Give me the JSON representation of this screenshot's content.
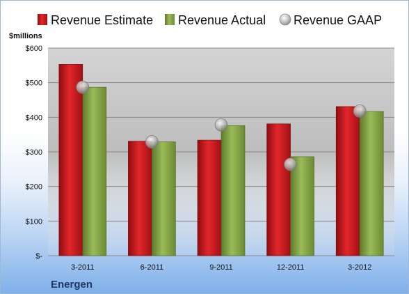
{
  "chart_data": {
    "type": "bar",
    "unit_label": "$millions",
    "company": "Energen",
    "categories": [
      "3-2011",
      "6-2011",
      "9-2011",
      "12-2011",
      "3-2012"
    ],
    "y_ticks": [
      {
        "value": 0,
        "label": "$-"
      },
      {
        "value": 100,
        "label": "$100"
      },
      {
        "value": 200,
        "label": "$200"
      },
      {
        "value": 300,
        "label": "$300"
      },
      {
        "value": 400,
        "label": "$400"
      },
      {
        "value": 500,
        "label": "$500"
      },
      {
        "value": 600,
        "label": "$600"
      }
    ],
    "ylim": [
      0,
      600
    ],
    "grid": true,
    "legend_position": "top",
    "series": [
      {
        "name": "Revenue Estimate",
        "kind": "bar",
        "color": "#c8171c",
        "values": [
          553,
          331,
          334,
          381,
          431
        ]
      },
      {
        "name": "Revenue Actual",
        "kind": "bar",
        "color": "#86a44a",
        "values": [
          487,
          329,
          376,
          286,
          417
        ]
      },
      {
        "name": "Revenue GAAP",
        "kind": "marker",
        "color": "#a6a6a6",
        "values": [
          487,
          329,
          378,
          264,
          418
        ]
      }
    ]
  }
}
